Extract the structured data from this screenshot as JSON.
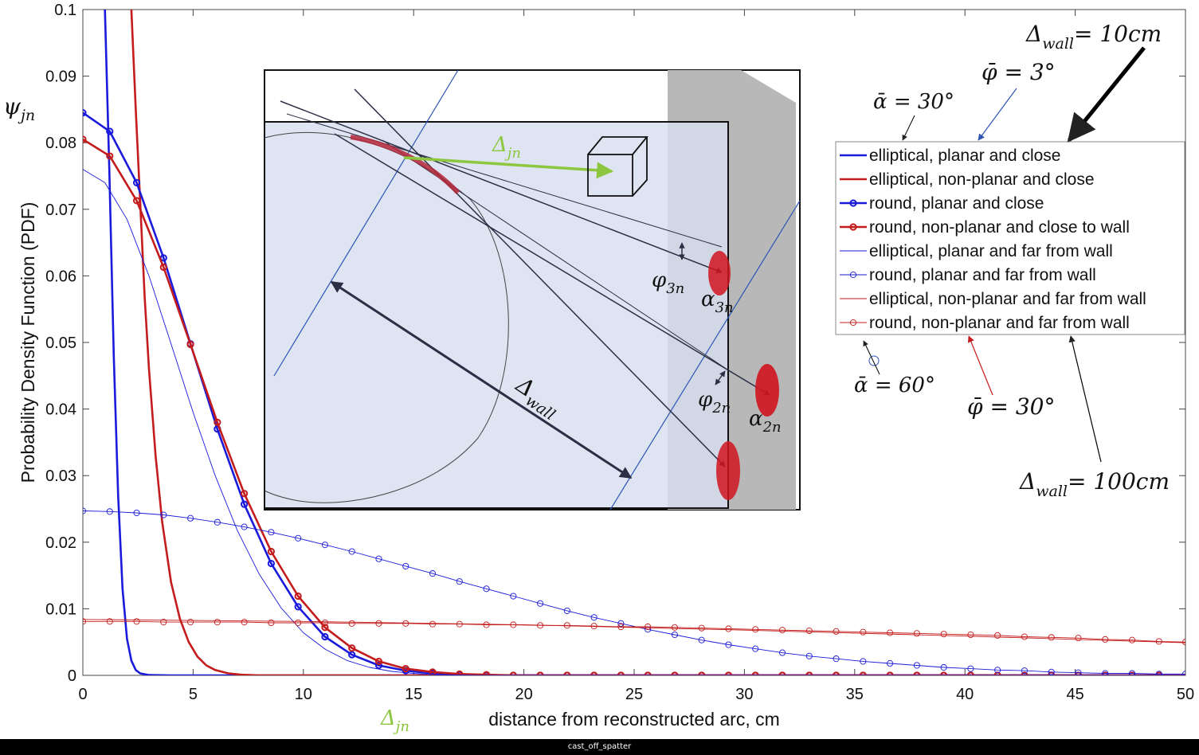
{
  "footer_caption": "cast_off_spatter",
  "chart_data": {
    "type": "line",
    "xlabel": "distance from reconstructed arc, cm",
    "ylabel": "Probability Density Function (PDF)",
    "ylabel_symbol": "ψ",
    "ylabel_symbol_sub": "jn",
    "xlabel_symbol": "Δ",
    "xlabel_symbol_sub": "jn",
    "xlim": [
      0,
      50
    ],
    "ylim": [
      0,
      0.1
    ],
    "xticks": [
      "0",
      "5",
      "10",
      "15",
      "20",
      "25",
      "30",
      "35",
      "40",
      "45",
      "50"
    ],
    "yticks": [
      "0",
      "0.01",
      "0.02",
      "0.03",
      "0.04",
      "0.05",
      "0.06",
      "0.07",
      "0.08",
      "0.09",
      "0.1"
    ],
    "grid": false,
    "legend_position": "right",
    "colors": {
      "blue": "#1a1adb",
      "red": "#c41c1c",
      "inset_fill": "#dfe4f1",
      "wall": "#b8b8b8",
      "arrow_green": "#8dc63f"
    },
    "series": [
      {
        "name": "elliptical, planar and close",
        "color": "#1a1adb",
        "width": 2.6,
        "marker": false,
        "x": [
          1.0,
          1.2,
          1.4,
          1.6,
          1.8,
          2.0,
          2.2,
          2.4,
          2.6,
          3.0,
          4.0,
          50
        ],
        "y": [
          0.1,
          0.076,
          0.048,
          0.027,
          0.013,
          0.0055,
          0.0022,
          0.0008,
          0.0003,
          5e-05,
          0,
          0
        ]
      },
      {
        "name": "elliptical, non-planar and close",
        "color": "#c41c1c",
        "width": 2.6,
        "marker": false,
        "x": [
          2.2,
          2.4,
          2.6,
          2.8,
          3.0,
          3.3,
          3.6,
          4.0,
          4.4,
          4.8,
          5.2,
          5.6,
          6.0,
          6.6,
          7.2,
          8.0,
          50
        ],
        "y": [
          0.1,
          0.085,
          0.071,
          0.057,
          0.046,
          0.033,
          0.023,
          0.014,
          0.0085,
          0.005,
          0.0028,
          0.0015,
          0.0008,
          0.0003,
          0.0001,
          0,
          0
        ]
      },
      {
        "name": "round, planar and close",
        "color": "#1a1adb",
        "width": 2.6,
        "marker": true,
        "x": [
          0,
          1.22,
          2.44,
          3.66,
          4.88,
          6.1,
          7.32,
          8.54,
          9.76,
          10.98,
          12.2,
          13.42,
          14.64,
          15.86,
          17.08,
          18.3,
          19.52,
          20.74,
          21.96,
          23.18,
          24.4,
          25.62,
          26.84,
          28.06,
          29.28,
          30.5,
          31.72,
          32.94,
          34.16,
          35.38,
          36.6,
          37.82,
          39.04,
          40.26,
          41.48,
          42.7,
          43.92,
          45.14,
          46.36,
          47.58,
          48.8
        ],
        "y": [
          0.0845,
          0.0817,
          0.074,
          0.0627,
          0.0498,
          0.037,
          0.0257,
          0.0168,
          0.0103,
          0.0058,
          0.0031,
          0.0015,
          0.0007,
          0.0003,
          0.0001,
          0,
          0,
          0,
          0,
          0,
          0,
          0,
          0,
          0,
          0,
          0,
          0,
          0,
          0,
          0,
          0,
          0,
          0,
          0,
          0,
          0,
          0,
          0,
          0,
          0,
          0
        ]
      },
      {
        "name": "round, non-planar and close to wall",
        "color": "#c41c1c",
        "width": 2.6,
        "marker": true,
        "x": [
          0,
          1.22,
          2.44,
          3.66,
          4.88,
          6.1,
          7.32,
          8.54,
          9.76,
          10.98,
          12.2,
          13.42,
          14.64,
          15.86,
          17.08,
          18.3,
          19.52,
          20.74,
          21.96,
          23.18,
          24.4,
          25.62,
          26.84,
          28.06,
          29.28,
          30.5,
          31.72,
          32.94,
          34.16,
          35.38,
          36.6,
          37.82,
          39.04,
          40.26,
          41.48,
          42.7,
          43.92,
          45.14,
          46.36,
          47.58,
          48.8
        ],
        "y": [
          0.0805,
          0.078,
          0.0713,
          0.0613,
          0.0497,
          0.038,
          0.0273,
          0.0186,
          0.0119,
          0.0072,
          0.0041,
          0.0021,
          0.001,
          0.0005,
          0.0002,
          0.0001,
          0,
          0,
          0,
          0,
          0,
          0,
          0,
          0,
          0,
          0,
          0,
          0,
          0,
          0,
          0,
          0,
          0,
          0,
          0,
          0,
          0,
          0,
          0,
          0,
          0
        ]
      },
      {
        "name": "elliptical, planar and far from wall",
        "color": "#1a1adb",
        "width": 0.9,
        "marker": false,
        "x": [
          0,
          1.0,
          2.0,
          3.0,
          4.0,
          5.0,
          6.0,
          7.0,
          8.0,
          9.0,
          10.0,
          11.0,
          12.0,
          13.0,
          14.0,
          15.0,
          16.0,
          17.0,
          18.0,
          50
        ],
        "y": [
          0.076,
          0.074,
          0.0685,
          0.06,
          0.0498,
          0.0395,
          0.03,
          0.0218,
          0.0152,
          0.0101,
          0.0064,
          0.0039,
          0.0022,
          0.0012,
          0.0006,
          0.0003,
          0.0001,
          5e-05,
          0,
          0
        ]
      },
      {
        "name": "round, planar and far from wall",
        "color": "#1a1adb",
        "width": 0.9,
        "marker": true,
        "x": [
          0,
          1.22,
          2.44,
          3.66,
          4.88,
          6.1,
          7.32,
          8.54,
          9.76,
          10.98,
          12.2,
          13.42,
          14.64,
          15.86,
          17.08,
          18.3,
          19.52,
          20.74,
          21.96,
          23.18,
          24.4,
          25.62,
          26.84,
          28.06,
          29.28,
          30.5,
          31.72,
          32.94,
          34.16,
          35.38,
          36.6,
          37.82,
          39.04,
          40.26,
          41.48,
          42.7,
          43.92,
          45.14,
          46.36,
          47.58,
          48.8,
          50
        ],
        "y": [
          0.0247,
          0.0246,
          0.0244,
          0.0241,
          0.0236,
          0.023,
          0.0223,
          0.0215,
          0.0206,
          0.0196,
          0.0186,
          0.0175,
          0.0164,
          0.0153,
          0.0141,
          0.013,
          0.0119,
          0.0108,
          0.0097,
          0.0087,
          0.0078,
          0.0069,
          0.0061,
          0.0053,
          0.0046,
          0.004,
          0.0034,
          0.0029,
          0.0025,
          0.0021,
          0.0018,
          0.0015,
          0.0012,
          0.001,
          0.0008,
          0.0007,
          0.0005,
          0.0004,
          0.0003,
          0.0003,
          0.0002,
          0.0002
        ]
      },
      {
        "name": "elliptical, non-planar and far from wall",
        "color": "#c41c1c",
        "width": 0.9,
        "marker": false,
        "x": [
          0,
          10,
          20,
          30,
          40,
          50
        ],
        "y": [
          0.0084,
          0.0081,
          0.0076,
          0.0068,
          0.0059,
          0.0049
        ]
      },
      {
        "name": "round, non-planar and far from wall",
        "color": "#c41c1c",
        "width": 0.9,
        "marker": true,
        "x": [
          0,
          1.22,
          2.44,
          3.66,
          4.88,
          6.1,
          7.32,
          8.54,
          9.76,
          10.98,
          12.2,
          13.42,
          14.64,
          15.86,
          17.08,
          18.3,
          19.52,
          20.74,
          21.96,
          23.18,
          24.4,
          25.62,
          26.84,
          28.06,
          29.28,
          30.5,
          31.72,
          32.94,
          34.16,
          35.38,
          36.6,
          37.82,
          39.04,
          40.26,
          41.48,
          42.7,
          43.92,
          45.14,
          46.36,
          47.58,
          48.8,
          50
        ],
        "y": [
          0.0081,
          0.0081,
          0.0081,
          0.008,
          0.008,
          0.008,
          0.008,
          0.0079,
          0.0079,
          0.0079,
          0.0078,
          0.0078,
          0.0078,
          0.0077,
          0.0077,
          0.0076,
          0.0076,
          0.0075,
          0.0075,
          0.0074,
          0.0073,
          0.0073,
          0.0072,
          0.0071,
          0.007,
          0.0069,
          0.0068,
          0.0067,
          0.0066,
          0.0065,
          0.0064,
          0.0063,
          0.0062,
          0.0061,
          0.006,
          0.0058,
          0.0057,
          0.0056,
          0.0054,
          0.0053,
          0.0051,
          0.005
        ]
      }
    ],
    "annotations": [
      {
        "base": "Δ",
        "sub": "wall",
        "rest": "= 10cm"
      },
      {
        "base": "φ̄",
        "sub": "",
        "rest": " = 3°"
      },
      {
        "base": "ᾱ",
        "sub": "",
        "rest": " = 30°"
      },
      {
        "base": "ᾱ",
        "sub": "",
        "rest": " = 60°"
      },
      {
        "base": "φ̄",
        "sub": "",
        "rest": " = 30°"
      },
      {
        "base": "Δ",
        "sub": "wall",
        "rest": "= 100cm"
      }
    ],
    "inset_labels": {
      "delta_jn": {
        "base": "Δ",
        "sub": "jn"
      },
      "phi3": {
        "base": "φ",
        "sub": "3n"
      },
      "alpha3": {
        "base": "α",
        "sub": "3n"
      },
      "phi2": {
        "base": "φ",
        "sub": "2n"
      },
      "alpha2": {
        "base": "α",
        "sub": "2n"
      },
      "delta_wall": {
        "base": "Δ",
        "sub": "wall"
      }
    }
  }
}
